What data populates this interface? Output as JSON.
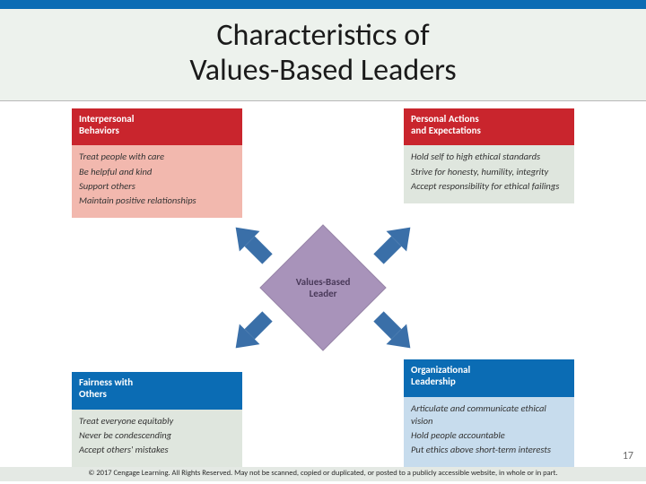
{
  "layout": {
    "top_bar_color": "#0b6cb4",
    "title_bg": "#edf2ed",
    "body_bg": "#ffffff"
  },
  "title": "Characteristics of\nValues-Based Leaders",
  "center": {
    "label": "Values-Based\nLeader",
    "fill": "#a893ba",
    "text_color": "#4a3a5a"
  },
  "arrows": {
    "color": "#3a6fa8"
  },
  "quadrants": {
    "tl": {
      "header": "Interpersonal\nBehaviors",
      "header_bg": "#c9252d",
      "body_bg": "#f2b8ae",
      "items": [
        "Treat people with care",
        "Be helpful and kind",
        "Support others",
        "Maintain positive relationships"
      ]
    },
    "tr": {
      "header": "Personal Actions\nand Expectations",
      "header_bg": "#c9252d",
      "body_bg": "#dfe6de",
      "items": [
        "Hold self to high ethical standards",
        "Strive for honesty, humility, integrity",
        "Accept responsibility for ethical failings"
      ]
    },
    "bl": {
      "header": "Fairness with\nOthers",
      "header_bg": "#0b6cb4",
      "body_bg": "#dfe6de",
      "items": [
        "Treat everyone equitably",
        "Never be condescending",
        "Accept others' mistakes"
      ]
    },
    "br": {
      "header": "Organizational\nLeadership",
      "header_bg": "#0b6cb4",
      "body_bg": "#c7dced",
      "items": [
        "Articulate and communicate ethical vision",
        "Hold people accountable",
        "Put ethics above short-term interests"
      ]
    }
  },
  "page_number": "17",
  "copyright": "© 2017 Cengage Learning. All Rights Reserved. May not be scanned, copied or duplicated, or posted to a publicly accessible website, in whole or in part."
}
